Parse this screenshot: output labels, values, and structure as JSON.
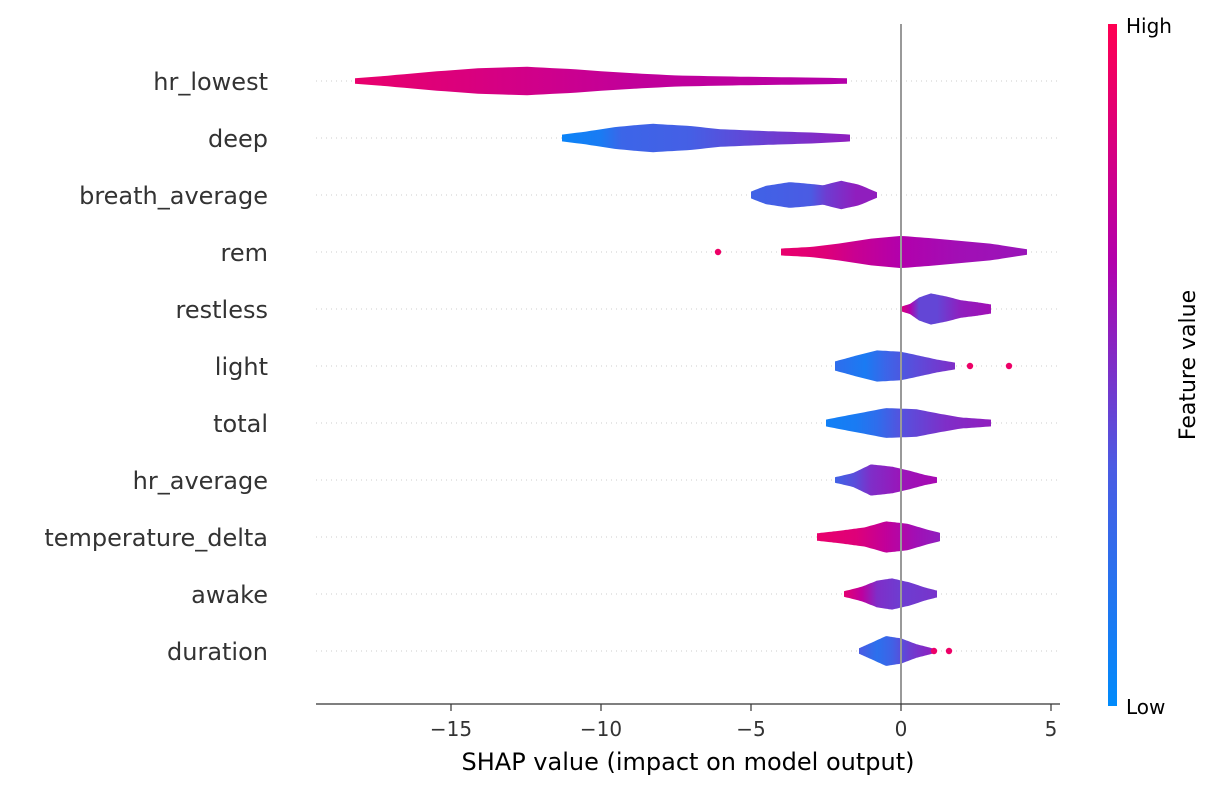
{
  "chart_data": {
    "type": "violin",
    "xlabel": "SHAP value (impact on model output)",
    "xlim": [
      -19.5,
      5.3
    ],
    "x_ticks": [
      -15,
      -10,
      -5,
      0,
      5
    ],
    "x_tick_labels": [
      "−15",
      "−10",
      "−5",
      "0",
      "5"
    ],
    "reference_line_x": 0,
    "colorbar": {
      "label": "Feature value",
      "high_label": "High",
      "low_label": "Low",
      "low_color": "#008bfb",
      "high_color": "#ff0052"
    },
    "features": [
      {
        "name": "hr_lowest",
        "min": -18.2,
        "max": -1.8,
        "profile": [
          [
            -18.2,
            0.12
          ],
          [
            -17.2,
            0.22
          ],
          [
            -15.5,
            0.42
          ],
          [
            -14,
            0.56
          ],
          [
            -12.5,
            0.62
          ],
          [
            -11,
            0.52
          ],
          [
            -9.5,
            0.38
          ],
          [
            -7.5,
            0.24
          ],
          [
            -5,
            0.18
          ],
          [
            -3,
            0.15
          ],
          [
            -1.8,
            0.12
          ]
        ],
        "color_stops": [
          [
            -18.2,
            0.9
          ],
          [
            -15,
            0.84
          ],
          [
            -12,
            0.78
          ],
          [
            -9,
            0.72
          ],
          [
            -5,
            0.7
          ],
          [
            -1.8,
            0.66
          ]
        ]
      },
      {
        "name": "deep",
        "min": -11.3,
        "max": -1.7,
        "profile": [
          [
            -11.3,
            0.15
          ],
          [
            -10.5,
            0.28
          ],
          [
            -9.5,
            0.48
          ],
          [
            -8.3,
            0.62
          ],
          [
            -7,
            0.52
          ],
          [
            -6,
            0.38
          ],
          [
            -4.5,
            0.3
          ],
          [
            -3,
            0.24
          ],
          [
            -1.7,
            0.15
          ]
        ],
        "color_stops": [
          [
            -11.3,
            0.05
          ],
          [
            -10,
            0.12
          ],
          [
            -9.3,
            0.28
          ],
          [
            -7,
            0.32
          ],
          [
            -5,
            0.42
          ],
          [
            -3,
            0.5
          ],
          [
            -1.7,
            0.55
          ]
        ]
      },
      {
        "name": "breath_average",
        "min": -5.0,
        "max": -0.8,
        "profile": [
          [
            -5,
            0.15
          ],
          [
            -4.5,
            0.4
          ],
          [
            -3.7,
            0.56
          ],
          [
            -3,
            0.48
          ],
          [
            -2.6,
            0.42
          ],
          [
            -2,
            0.62
          ],
          [
            -1.4,
            0.45
          ],
          [
            -0.8,
            0.12
          ]
        ],
        "color_stops": [
          [
            -5,
            0.3
          ],
          [
            -4,
            0.32
          ],
          [
            -3,
            0.35
          ],
          [
            -2.5,
            0.45
          ],
          [
            -1.5,
            0.55
          ],
          [
            -0.8,
            0.55
          ]
        ]
      },
      {
        "name": "rem",
        "min": -4.0,
        "max": 4.2,
        "profile": [
          [
            -4,
            0.15
          ],
          [
            -3,
            0.22
          ],
          [
            -2,
            0.38
          ],
          [
            -1,
            0.58
          ],
          [
            0,
            0.7
          ],
          [
            1,
            0.6
          ],
          [
            2,
            0.48
          ],
          [
            3,
            0.36
          ],
          [
            4.2,
            0.12
          ]
        ],
        "color_stops": [
          [
            -4,
            0.9
          ],
          [
            -2.5,
            0.85
          ],
          [
            -1.5,
            0.75
          ],
          [
            0,
            0.65
          ],
          [
            2,
            0.6
          ],
          [
            4.2,
            0.58
          ]
        ]
      },
      {
        "name": "restless",
        "min": 0.0,
        "max": 3.0,
        "profile": [
          [
            0,
            0.1
          ],
          [
            0.3,
            0.22
          ],
          [
            0.6,
            0.5
          ],
          [
            1,
            0.68
          ],
          [
            1.5,
            0.55
          ],
          [
            2,
            0.38
          ],
          [
            2.5,
            0.3
          ],
          [
            3,
            0.2
          ]
        ],
        "color_stops": [
          [
            0,
            0.85
          ],
          [
            0.3,
            0.65
          ],
          [
            0.6,
            0.42
          ],
          [
            1.2,
            0.42
          ],
          [
            2,
            0.55
          ],
          [
            3,
            0.6
          ]
        ]
      },
      {
        "name": "light",
        "min": -2.2,
        "max": 1.8,
        "profile": [
          [
            -2.2,
            0.2
          ],
          [
            -1.5,
            0.45
          ],
          [
            -0.8,
            0.68
          ],
          [
            0,
            0.62
          ],
          [
            0.6,
            0.45
          ],
          [
            1.2,
            0.28
          ],
          [
            1.8,
            0.15
          ]
        ],
        "color_stops": [
          [
            -2.2,
            0.22
          ],
          [
            -1.2,
            0.12
          ],
          [
            -0.5,
            0.28
          ],
          [
            0.5,
            0.4
          ],
          [
            1.8,
            0.5
          ]
        ]
      },
      {
        "name": "total",
        "min": -2.5,
        "max": 3.0,
        "profile": [
          [
            -2.5,
            0.15
          ],
          [
            -1.5,
            0.4
          ],
          [
            -0.5,
            0.65
          ],
          [
            0.5,
            0.6
          ],
          [
            1.3,
            0.4
          ],
          [
            2,
            0.24
          ],
          [
            3,
            0.15
          ]
        ],
        "color_stops": [
          [
            -2.5,
            0.08
          ],
          [
            -1.5,
            0.12
          ],
          [
            -0.8,
            0.22
          ],
          [
            0,
            0.38
          ],
          [
            1.5,
            0.5
          ],
          [
            3,
            0.55
          ]
        ]
      },
      {
        "name": "hr_average",
        "min": -2.2,
        "max": 1.2,
        "profile": [
          [
            -2.2,
            0.12
          ],
          [
            -1.6,
            0.3
          ],
          [
            -1,
            0.68
          ],
          [
            -0.3,
            0.58
          ],
          [
            0.3,
            0.4
          ],
          [
            0.8,
            0.22
          ],
          [
            1.2,
            0.12
          ]
        ],
        "color_stops": [
          [
            -2.2,
            0.3
          ],
          [
            -1.5,
            0.4
          ],
          [
            -1,
            0.5
          ],
          [
            0,
            0.58
          ],
          [
            1.2,
            0.62
          ]
        ]
      },
      {
        "name": "temperature_delta",
        "min": -2.8,
        "max": 1.3,
        "profile": [
          [
            -2.8,
            0.16
          ],
          [
            -2,
            0.28
          ],
          [
            -1.2,
            0.42
          ],
          [
            -0.5,
            0.68
          ],
          [
            0.2,
            0.58
          ],
          [
            0.8,
            0.35
          ],
          [
            1.3,
            0.18
          ]
        ],
        "color_stops": [
          [
            -2.8,
            0.9
          ],
          [
            -1.5,
            0.85
          ],
          [
            -0.5,
            0.72
          ],
          [
            0.5,
            0.6
          ],
          [
            1.3,
            0.55
          ]
        ]
      },
      {
        "name": "awake",
        "min": -1.9,
        "max": 1.2,
        "profile": [
          [
            -1.9,
            0.12
          ],
          [
            -1.3,
            0.32
          ],
          [
            -0.8,
            0.58
          ],
          [
            -0.3,
            0.68
          ],
          [
            0.3,
            0.5
          ],
          [
            0.8,
            0.28
          ],
          [
            1.2,
            0.15
          ]
        ],
        "color_stops": [
          [
            -1.9,
            0.88
          ],
          [
            -1.3,
            0.7
          ],
          [
            -0.8,
            0.5
          ],
          [
            0,
            0.45
          ],
          [
            1.2,
            0.48
          ]
        ]
      },
      {
        "name": "duration",
        "min": -1.4,
        "max": 1.1,
        "profile": [
          [
            -1.4,
            0.12
          ],
          [
            -1,
            0.35
          ],
          [
            -0.5,
            0.65
          ],
          [
            0,
            0.55
          ],
          [
            0.5,
            0.3
          ],
          [
            1.1,
            0.1
          ]
        ],
        "color_stops": [
          [
            -1.4,
            0.35
          ],
          [
            -0.8,
            0.2
          ],
          [
            -0.3,
            0.3
          ],
          [
            0.3,
            0.45
          ],
          [
            1.1,
            0.55
          ]
        ]
      }
    ],
    "outliers": [
      {
        "feature": "rem",
        "x": -6.1,
        "color_value": 0.92
      },
      {
        "feature": "light",
        "x": 2.3,
        "color_value": 0.92
      },
      {
        "feature": "light",
        "x": 3.6,
        "color_value": 0.92
      },
      {
        "feature": "duration",
        "x": 1.1,
        "color_value": 0.92
      },
      {
        "feature": "duration",
        "x": 1.6,
        "color_value": 0.92
      }
    ]
  }
}
